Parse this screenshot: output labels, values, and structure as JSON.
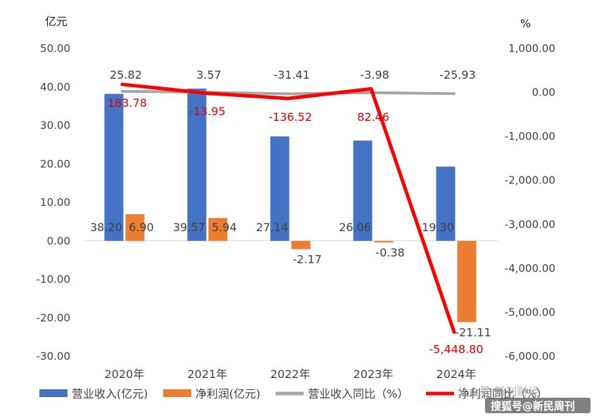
{
  "chart_data": {
    "type": "bar",
    "categories": [
      "2020年",
      "2021年",
      "2022年",
      "2023年",
      "2024年"
    ],
    "left_axis": {
      "unit": "亿元",
      "ylim": [
        -30,
        50
      ],
      "ticks": [
        50,
        40,
        30,
        20,
        10,
        0,
        -10,
        -20,
        -30
      ],
      "tick_labels": [
        "50.00",
        "40.00",
        "30.00",
        "20.00",
        "10.00",
        "0.00",
        "-10.00",
        "-20.00",
        "-30.00"
      ]
    },
    "right_axis": {
      "unit": "%",
      "ylim": [
        -6000,
        1000
      ],
      "ticks": [
        1000,
        0,
        -1000,
        -2000,
        -3000,
        -4000,
        -5000,
        -6000
      ],
      "tick_labels": [
        "1,000.00",
        "0.00",
        "-1,000.00",
        "-2,000.00",
        "-3,000.00",
        "-4,000.00",
        "-5,000.00",
        "-6,000.00"
      ]
    },
    "series": [
      {
        "name": "营业收入(亿元)",
        "type": "bar",
        "axis": "left",
        "color": "#4472c4",
        "values": [
          38.2,
          39.57,
          27.14,
          26.06,
          19.3
        ],
        "labels": [
          "38.20",
          "39.57",
          "27.14",
          "26.06",
          "19.30"
        ]
      },
      {
        "name": "净利润(亿元)",
        "type": "bar",
        "axis": "left",
        "color": "#ed7d31",
        "values": [
          6.9,
          5.94,
          -2.17,
          -0.38,
          -21.11
        ],
        "labels": [
          "6.90",
          "5.94",
          "-2.17",
          "-0.38",
          "-21.11"
        ]
      },
      {
        "name": "营业收入同比（%）",
        "type": "line",
        "axis": "right",
        "color": "#a5a5a5",
        "values": [
          25.82,
          3.57,
          -31.41,
          -3.98,
          -25.93
        ],
        "labels": [
          "25.82",
          "3.57",
          "-31.41",
          "-3.98",
          "-25.93"
        ]
      },
      {
        "name": "净利润同比（%）",
        "type": "line",
        "axis": "right",
        "color": "#ff0000",
        "values": [
          183.78,
          -13.95,
          -136.52,
          82.46,
          -5448.8
        ],
        "labels": [
          "183.78",
          "-13.95",
          "-136.52",
          "82.46",
          "-5,448.80"
        ]
      }
    ],
    "legend_position": "bottom",
    "grid": false
  },
  "watermark": {
    "text1": "公众号 新刊财经",
    "text2": "搜狐号@新民周刊"
  }
}
